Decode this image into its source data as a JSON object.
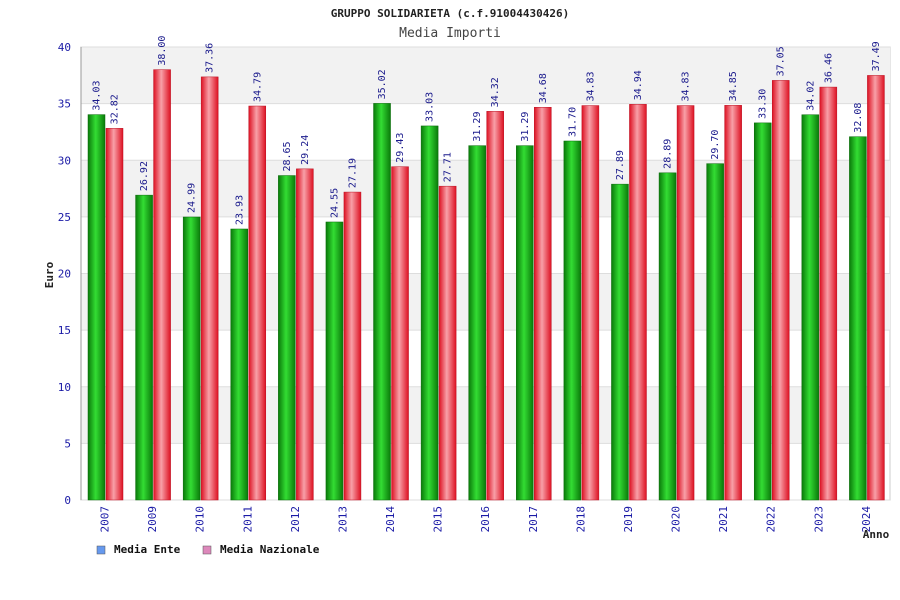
{
  "chart_data": {
    "type": "bar",
    "title": "GRUPPO SOLIDARIETA (c.f.91004430426)",
    "subtitle": "Media Importi",
    "xlabel": "Anno",
    "ylabel": "Euro",
    "ylim": [
      0,
      40
    ],
    "yticks": [
      0,
      5,
      10,
      15,
      20,
      25,
      30,
      35,
      40
    ],
    "grid": true,
    "legend_position": "bottom-left",
    "categories": [
      "2007",
      "2009",
      "2010",
      "2011",
      "2012",
      "2013",
      "2014",
      "2015",
      "2016",
      "2017",
      "2018",
      "2019",
      "2020",
      "2021",
      "2022",
      "2023",
      "2024"
    ],
    "series": [
      {
        "name": "Media Ente",
        "color": "#22aa22",
        "legend_color": "#6699ee",
        "values": [
          34.03,
          26.92,
          24.99,
          23.93,
          28.65,
          24.55,
          35.02,
          33.03,
          31.29,
          31.29,
          31.7,
          27.89,
          28.89,
          29.7,
          33.3,
          34.02,
          32.08
        ],
        "labels": [
          "34.03",
          "26.92",
          "24.99",
          "23.93",
          "28.65",
          "24.55",
          "35.02",
          "33.03",
          "31.29",
          "31.29",
          "31.70",
          "27.89",
          "28.89",
          "29.70",
          "33.30",
          "34.02",
          "32.08"
        ]
      },
      {
        "name": "Media Nazionale",
        "color": "#ee2233",
        "legend_color": "#dd88bb",
        "values": [
          32.82,
          38.0,
          37.36,
          34.79,
          29.24,
          27.19,
          29.43,
          27.71,
          34.32,
          34.68,
          34.83,
          34.94,
          34.83,
          34.85,
          37.05,
          36.46,
          37.49
        ],
        "labels": [
          "32.82",
          "38.00",
          "37.36",
          "34.79",
          "29.24",
          "27.19",
          "29.43",
          "27.71",
          "34.32",
          "34.68",
          "34.83",
          "34.94",
          "34.83",
          "34.85",
          "37.05",
          "36.46",
          "37.49"
        ]
      }
    ]
  }
}
